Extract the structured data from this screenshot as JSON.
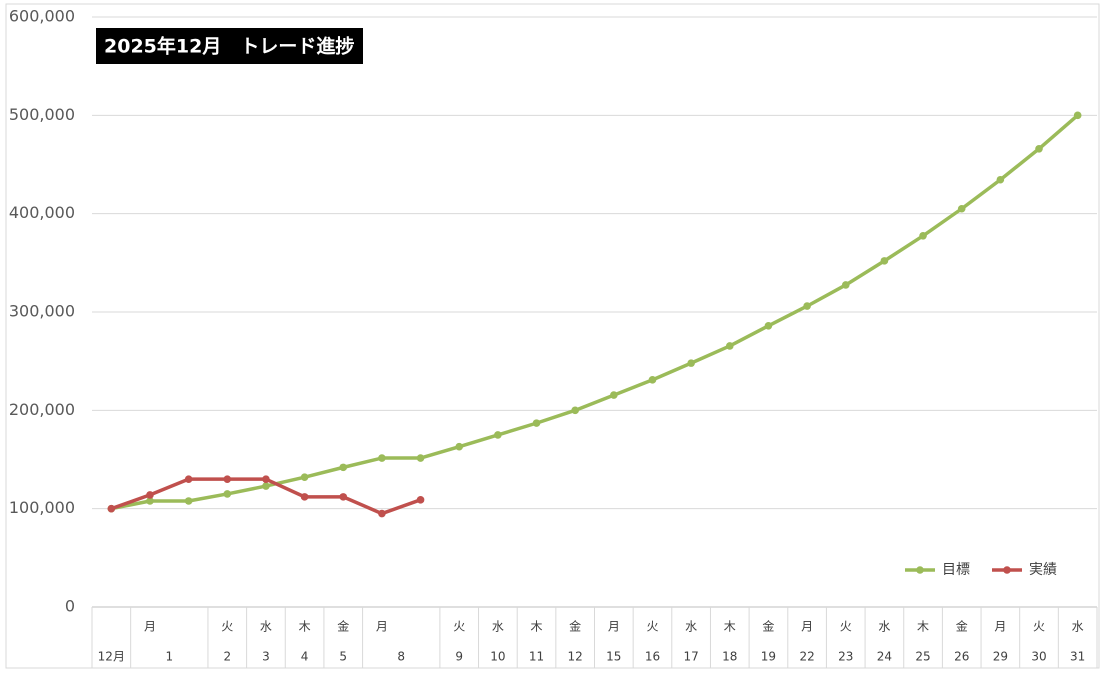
{
  "chart_data": {
    "type": "line",
    "title": "2025年12月　トレード進捗",
    "categories": [
      null,
      "月",
      null,
      "火",
      "水",
      "木",
      "金",
      "月",
      null,
      "火",
      "水",
      "木",
      "金",
      "月",
      "火",
      "水",
      "木",
      "金",
      "月",
      "火",
      "水",
      "木",
      "金",
      "月",
      "火",
      "水"
    ],
    "days": [
      "12月",
      "1",
      null,
      "2",
      "3",
      "4",
      "5",
      "8",
      null,
      "9",
      "10",
      "11",
      "12",
      "15",
      "16",
      "17",
      "18",
      "19",
      "22",
      "23",
      "24",
      "25",
      "26",
      "29",
      "30",
      "31"
    ],
    "series": [
      {
        "name": "目標",
        "color": "#9bbb59",
        "values": [
          100000,
          107800,
          107800,
          115000,
          123000,
          132000,
          142000,
          151500,
          151500,
          163000,
          175000,
          187000,
          200000,
          215500,
          231000,
          248000,
          265500,
          286000,
          306000,
          327500,
          352000,
          377500,
          405000,
          434500,
          466000,
          500000
        ]
      },
      {
        "name": "実績",
        "color": "#c0504d",
        "values": [
          100000,
          114000,
          130000,
          130000,
          130000,
          112000,
          112000,
          95000,
          109000,
          null,
          null,
          null,
          null,
          null,
          null,
          null,
          null,
          null,
          null,
          null,
          null,
          null,
          null,
          null,
          null,
          null
        ]
      }
    ],
    "ylim": [
      0,
      600000
    ],
    "yticks": [
      0,
      {
        "value": 100000,
        "label": "100,000"
      },
      {
        "value": 200000,
        "label": "200,000"
      },
      {
        "value": 300000,
        "label": "300,000"
      },
      {
        "value": 400000,
        "label": "400,000"
      },
      {
        "value": 500000,
        "label": "500,000"
      },
      {
        "value": 600000,
        "label": "600,000"
      }
    ],
    "grid": true,
    "legend": "lower right"
  }
}
